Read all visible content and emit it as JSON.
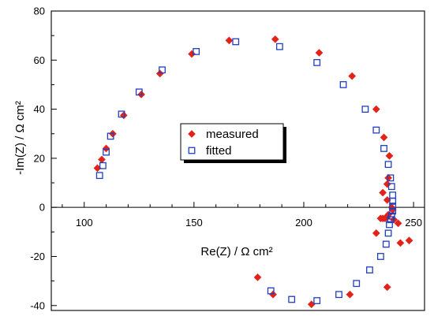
{
  "chart_data": {
    "type": "scatter",
    "title": "",
    "xlabel": "Re(Z) / Ω cm²",
    "ylabel": "-Im(Z) / Ω cm²",
    "xlim": [
      85,
      255
    ],
    "ylim": [
      -42,
      80
    ],
    "xticks": [
      100,
      150,
      200,
      250
    ],
    "yticks": [
      -40,
      -20,
      0,
      20,
      40,
      60,
      80
    ],
    "grid": false,
    "legend_position": "center",
    "series": [
      {
        "name": "measured",
        "marker": "filled-diamond",
        "color": "#e2231a",
        "points": [
          [
            106,
            16
          ],
          [
            108,
            19.5
          ],
          [
            110,
            24
          ],
          [
            113,
            30
          ],
          [
            118,
            37.5
          ],
          [
            126,
            46
          ],
          [
            134.5,
            54.5
          ],
          [
            149,
            62.5
          ],
          [
            166,
            68
          ],
          [
            187,
            68.5
          ],
          [
            207,
            63
          ],
          [
            222,
            53.5
          ],
          [
            233,
            40
          ],
          [
            236.5,
            28.5
          ],
          [
            239,
            21
          ],
          [
            238.5,
            12
          ],
          [
            238,
            9.5
          ],
          [
            236,
            6
          ],
          [
            238,
            3
          ],
          [
            240,
            0
          ],
          [
            240.5,
            -1
          ],
          [
            238.5,
            -3
          ],
          [
            238,
            -4
          ],
          [
            237,
            -4.5
          ],
          [
            236,
            -4.5
          ],
          [
            235,
            -4.5
          ],
          [
            241,
            -5
          ],
          [
            243,
            -6.5
          ],
          [
            233,
            -10.5
          ],
          [
            244,
            -14.5
          ],
          [
            248,
            -13.5
          ],
          [
            238,
            -32.5
          ],
          [
            221,
            -35.5
          ],
          [
            203.5,
            -39.5
          ],
          [
            186,
            -35.5
          ],
          [
            179,
            -28.5
          ]
        ]
      },
      {
        "name": "fitted",
        "marker": "hollow-square",
        "color": "#1f3fbf",
        "points": [
          [
            107,
            13
          ],
          [
            108.5,
            17
          ],
          [
            110,
            22.5
          ],
          [
            112,
            29
          ],
          [
            117,
            38
          ],
          [
            125,
            47
          ],
          [
            135.5,
            56
          ],
          [
            151,
            63.5
          ],
          [
            169,
            67.5
          ],
          [
            189,
            65.5
          ],
          [
            206,
            59
          ],
          [
            218,
            50
          ],
          [
            228,
            40
          ],
          [
            233,
            31.5
          ],
          [
            236.5,
            24
          ],
          [
            238.5,
            17.5
          ],
          [
            239.5,
            12
          ],
          [
            240,
            8.5
          ],
          [
            240.5,
            5
          ],
          [
            240.5,
            2.5
          ],
          [
            240.5,
            0.5
          ],
          [
            240.5,
            -1.5
          ],
          [
            240,
            -3.5
          ],
          [
            239.5,
            -5
          ],
          [
            239,
            -7
          ],
          [
            238.5,
            -10.5
          ],
          [
            237.5,
            -15
          ],
          [
            235,
            -20
          ],
          [
            230,
            -25.5
          ],
          [
            224,
            -31
          ],
          [
            216,
            -35.5
          ],
          [
            206,
            -38
          ],
          [
            194.5,
            -37.5
          ],
          [
            185,
            -34
          ]
        ]
      }
    ]
  }
}
